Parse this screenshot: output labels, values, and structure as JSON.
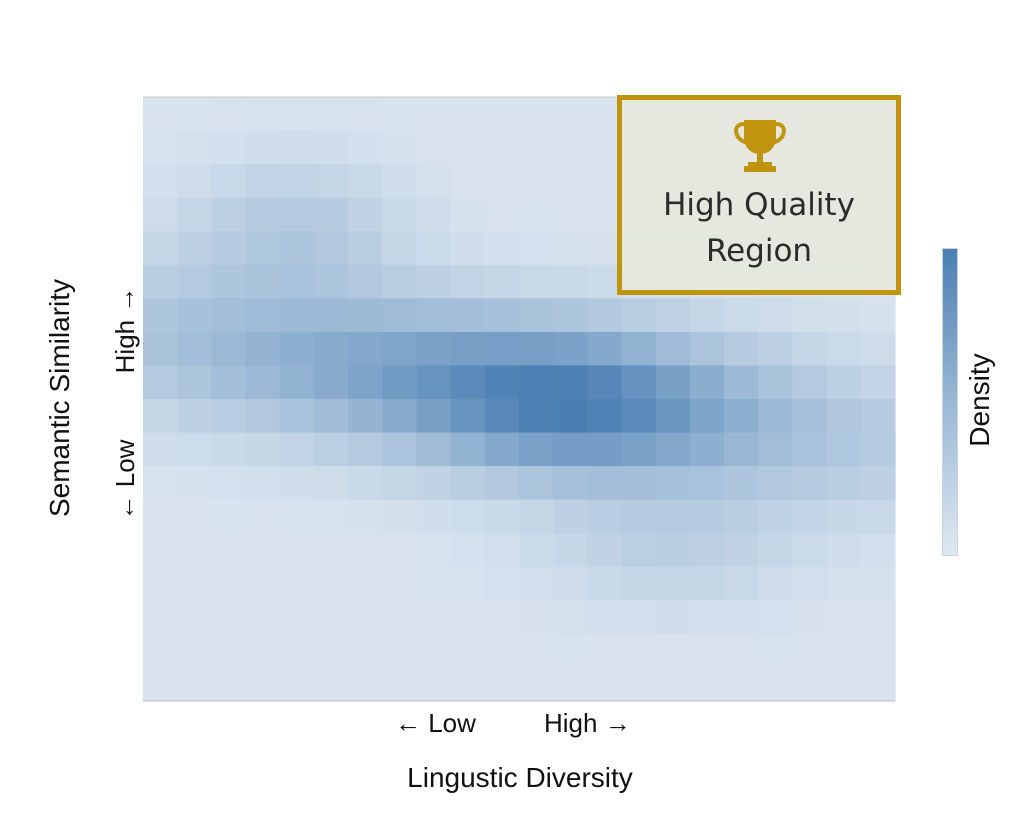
{
  "chart_data": {
    "type": "heatmap",
    "title": "",
    "xlabel": "Lingustic Diversity",
    "ylabel": "Semantic Similarity",
    "x_ticks": [
      "← Low",
      "High  →"
    ],
    "y_ticks": [
      "← Low",
      "High  →"
    ],
    "colorbar_label": "Density",
    "colormap": [
      "#dfe8f1",
      "#9ab8d5",
      "#4a7fb3"
    ],
    "grid": false,
    "legend": "none",
    "rows": 18,
    "cols": 22,
    "density_model": {
      "components": [
        {
          "weight": 0.55,
          "x": 0.57,
          "y": 0.49,
          "sx": 0.13,
          "sy": 0.085
        },
        {
          "weight": 0.95,
          "x": 0.46,
          "y": 0.52,
          "sx": 0.36,
          "sy": 0.11,
          "corr": -0.55
        },
        {
          "weight": 0.35,
          "x": 0.2,
          "y": 0.78,
          "sx": 0.1,
          "sy": 0.08
        },
        {
          "weight": 0.25,
          "x": 0.7,
          "y": 0.25,
          "sx": 0.12,
          "sy": 0.07
        }
      ],
      "background": 0.05
    },
    "annotation": {
      "label_line1": "High Quality",
      "label_line2": "Region",
      "icon": "trophy-icon",
      "border_color": "#c1940f",
      "position": "top-right"
    }
  }
}
